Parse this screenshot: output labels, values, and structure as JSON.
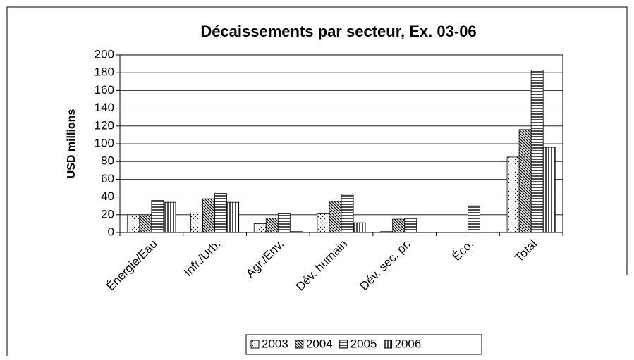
{
  "chart_data": {
    "type": "bar",
    "title": "Décaissements par secteur, Ex. 03-06",
    "y_label": "USD millions",
    "categories": [
      "Énergie/Eau",
      "Infr./Urb.",
      "Agr./Env.",
      "Dév. humain",
      "Dév. sec. pr.",
      "Éco.",
      "Total"
    ],
    "series": [
      {
        "name": "2003",
        "color": "#000000",
        "pattern": "dots",
        "values": [
          20,
          22,
          10,
          21,
          1,
          0,
          85
        ]
      },
      {
        "name": "2004",
        "color": "#000000",
        "pattern": "diagonal",
        "values": [
          20,
          38,
          16,
          35,
          15,
          0,
          116
        ]
      },
      {
        "name": "2005",
        "color": "#000000",
        "pattern": "horizontal",
        "values": [
          36,
          44,
          21,
          43,
          16,
          30,
          183
        ]
      },
      {
        "name": "2006",
        "color": "#000000",
        "pattern": "vertical",
        "values": [
          34,
          34,
          1,
          11,
          0,
          0,
          96
        ]
      }
    ],
    "ylim": [
      0,
      200
    ],
    "yticks": [
      0,
      20,
      40,
      60,
      80,
      100,
      120,
      140,
      160,
      180,
      200
    ],
    "grid": true,
    "legend": "bottom"
  }
}
